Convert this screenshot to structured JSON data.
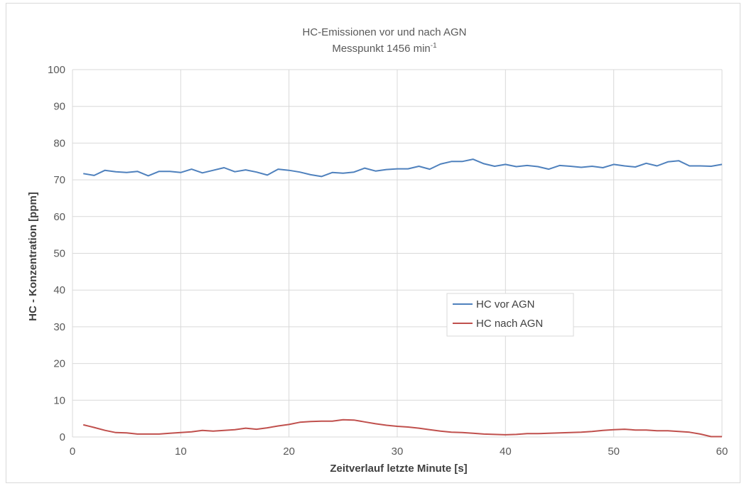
{
  "chart_data": {
    "type": "line",
    "title": "HC-Emissionen vor und nach AGN",
    "subtitle": "Messpunkt 1456 min",
    "subtitle_unit_sup": "-1",
    "xlabel": "Zeitverlauf letzte Minute  [s]",
    "ylabel": "HC - Konzentration  [ppm]",
    "xlim": [
      0,
      60
    ],
    "ylim": [
      0,
      100
    ],
    "x_ticks": [
      "0",
      "10",
      "20",
      "30",
      "40",
      "50",
      "60"
    ],
    "y_ticks": [
      "0",
      "10",
      "20",
      "30",
      "40",
      "50",
      "60",
      "70",
      "80",
      "90",
      "100"
    ],
    "grid": true,
    "legend_position": "center-right",
    "x": [
      1,
      2,
      3,
      4,
      5,
      6,
      7,
      8,
      9,
      10,
      11,
      12,
      13,
      14,
      15,
      16,
      17,
      18,
      19,
      20,
      21,
      22,
      23,
      24,
      25,
      26,
      27,
      28,
      29,
      30,
      31,
      32,
      33,
      34,
      35,
      36,
      37,
      38,
      39,
      40,
      41,
      42,
      43,
      44,
      45,
      46,
      47,
      48,
      49,
      50,
      51,
      52,
      53,
      54,
      55,
      56,
      57,
      58,
      59,
      60
    ],
    "series": [
      {
        "name": "HC vor AGN",
        "color": "#4f81bd",
        "values": [
          71.7,
          71.2,
          72.6,
          72.2,
          72.0,
          72.3,
          71.1,
          72.3,
          72.3,
          72.0,
          72.9,
          71.9,
          72.6,
          73.3,
          72.2,
          72.7,
          72.1,
          71.3,
          72.9,
          72.6,
          72.1,
          71.4,
          70.9,
          72.0,
          71.8,
          72.1,
          73.2,
          72.4,
          72.8,
          73.0,
          73.0,
          73.7,
          72.9,
          74.3,
          75.0,
          75.0,
          75.6,
          74.4,
          73.7,
          74.2,
          73.6,
          73.9,
          73.6,
          72.9,
          73.9,
          73.7,
          73.4,
          73.7,
          73.3,
          74.2,
          73.8,
          73.5,
          74.5,
          73.8,
          74.9,
          75.2,
          73.8,
          73.8,
          73.7,
          74.2
        ]
      },
      {
        "name": "HC nach AGN",
        "color": "#c0504d",
        "values": [
          3.3,
          2.6,
          1.8,
          1.2,
          1.1,
          0.8,
          0.8,
          0.8,
          1.0,
          1.2,
          1.4,
          1.8,
          1.6,
          1.8,
          2.0,
          2.4,
          2.1,
          2.5,
          3.0,
          3.4,
          4.0,
          4.2,
          4.3,
          4.3,
          4.7,
          4.6,
          4.1,
          3.6,
          3.2,
          2.9,
          2.7,
          2.4,
          2.0,
          1.6,
          1.3,
          1.2,
          1.0,
          0.8,
          0.7,
          0.6,
          0.7,
          0.9,
          0.9,
          1.0,
          1.1,
          1.2,
          1.3,
          1.5,
          1.8,
          2.0,
          2.1,
          1.9,
          1.9,
          1.7,
          1.7,
          1.5,
          1.3,
          0.8,
          0.1,
          0.1
        ]
      }
    ]
  }
}
